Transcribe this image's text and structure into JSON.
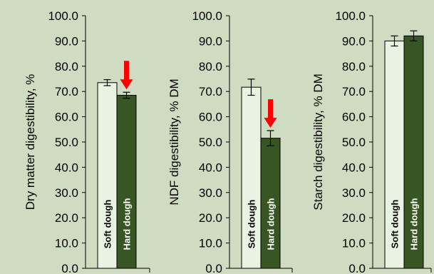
{
  "background_color": "#cfdcc1",
  "chart_data": [
    {
      "type": "bar",
      "categories": [
        "Soft dough",
        "Hard dough"
      ],
      "values": [
        73.5,
        68.5
      ],
      "errors": [
        1.2,
        1.2
      ],
      "ylabel": "Dry matter digestibility, %",
      "ylim": [
        0,
        100
      ],
      "yticks": [
        "0.0",
        "10.0",
        "20.0",
        "30.0",
        "40.0",
        "50.0",
        "60.0",
        "70.0",
        "80.0",
        "90.0",
        "100.0"
      ],
      "bar_colors": [
        "#e9f3e3",
        "#375623"
      ],
      "label_colors": [
        "#000000",
        "#ffffff"
      ],
      "arrow": true,
      "arrow_color": "#ff0000"
    },
    {
      "type": "bar",
      "categories": [
        "Soft dough",
        "Hard dough"
      ],
      "values": [
        71.7,
        51.5
      ],
      "errors": [
        3.2,
        3.0
      ],
      "ylabel": "NDF digestibility, % DM",
      "ylim": [
        0,
        100
      ],
      "yticks": [
        "0.0",
        "10.0",
        "20.0",
        "30.0",
        "40.0",
        "50.0",
        "60.0",
        "70.0",
        "80.0",
        "90.0",
        "100.0"
      ],
      "bar_colors": [
        "#e9f3e3",
        "#375623"
      ],
      "label_colors": [
        "#000000",
        "#ffffff"
      ],
      "arrow": true,
      "arrow_color": "#ff0000"
    },
    {
      "type": "bar",
      "categories": [
        "Soft dough",
        "Hard dough"
      ],
      "values": [
        90.0,
        92.0
      ],
      "errors": [
        2.0,
        2.0
      ],
      "ylabel": "Starch digestibility, % DM",
      "ylim": [
        0,
        100
      ],
      "yticks": [
        "0.0",
        "10.0",
        "20.0",
        "30.0",
        "40.0",
        "50.0",
        "60.0",
        "70.0",
        "80.0",
        "90.0",
        "100.0"
      ],
      "bar_colors": [
        "#e9f3e3",
        "#375623"
      ],
      "label_colors": [
        "#000000",
        "#ffffff"
      ],
      "arrow": false
    }
  ]
}
